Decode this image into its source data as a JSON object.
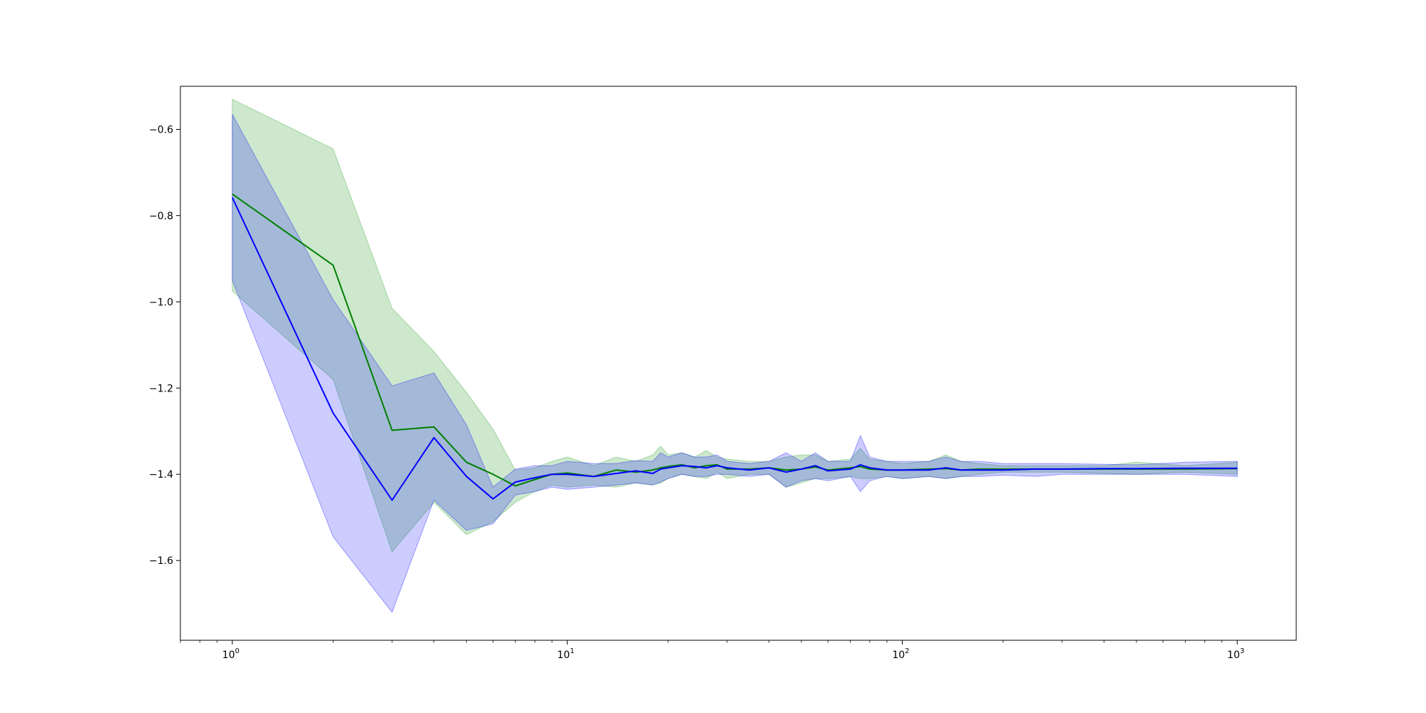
{
  "chart_data": {
    "type": "line",
    "title": "",
    "xlabel": "",
    "ylabel": "",
    "xscale": "log",
    "xlim": [
      0.7,
      1500
    ],
    "ylim": [
      -1.785,
      -0.5
    ],
    "grid": false,
    "legend": "none",
    "x_ticks": [
      {
        "value": 1,
        "base": "10",
        "exp": "0"
      },
      {
        "value": 10,
        "base": "10",
        "exp": "1"
      },
      {
        "value": 100,
        "base": "10",
        "exp": "2"
      },
      {
        "value": 1000,
        "base": "10",
        "exp": "3"
      }
    ],
    "y_ticks": [
      {
        "value": -0.6,
        "label": "−0.6"
      },
      {
        "value": -0.8,
        "label": "−0.8"
      },
      {
        "value": -1.0,
        "label": "−1.0"
      },
      {
        "value": -1.2,
        "label": "−1.2"
      },
      {
        "value": -1.4,
        "label": "−1.4"
      },
      {
        "value": -1.6,
        "label": "−1.6"
      }
    ],
    "series": [
      {
        "color": "#008000",
        "fill_color": "#2ca02c",
        "fill_opacity": 0.24,
        "x": [
          1,
          2,
          3,
          4,
          5,
          6,
          7,
          8,
          9,
          10,
          12,
          14,
          16,
          18,
          19,
          20,
          22,
          24,
          26,
          28,
          30,
          35,
          40,
          45,
          50,
          55,
          60,
          70,
          75,
          80,
          90,
          100,
          120,
          135,
          150,
          170,
          200,
          250,
          300,
          400,
          500,
          700,
          1000
        ],
        "y": [
          -0.75,
          -0.915,
          -1.298,
          -1.29,
          -1.372,
          -1.4,
          -1.427,
          -1.412,
          -1.4,
          -1.397,
          -1.405,
          -1.39,
          -1.395,
          -1.39,
          -1.385,
          -1.382,
          -1.378,
          -1.385,
          -1.38,
          -1.378,
          -1.388,
          -1.388,
          -1.385,
          -1.39,
          -1.388,
          -1.383,
          -1.39,
          -1.385,
          -1.382,
          -1.388,
          -1.39,
          -1.39,
          -1.388,
          -1.387,
          -1.39,
          -1.388,
          -1.388,
          -1.388,
          -1.388,
          -1.388,
          -1.388,
          -1.388,
          -1.387
        ],
        "upper": [
          -0.53,
          -0.645,
          -1.015,
          -1.115,
          -1.21,
          -1.295,
          -1.39,
          -1.385,
          -1.37,
          -1.36,
          -1.38,
          -1.36,
          -1.37,
          -1.355,
          -1.335,
          -1.355,
          -1.35,
          -1.36,
          -1.345,
          -1.36,
          -1.365,
          -1.37,
          -1.37,
          -1.36,
          -1.355,
          -1.355,
          -1.37,
          -1.365,
          -1.34,
          -1.365,
          -1.37,
          -1.375,
          -1.37,
          -1.355,
          -1.37,
          -1.375,
          -1.38,
          -1.38,
          -1.38,
          -1.38,
          -1.372,
          -1.38,
          -1.372
        ],
        "lower": [
          -0.975,
          -1.18,
          -1.58,
          -1.465,
          -1.54,
          -1.51,
          -1.465,
          -1.44,
          -1.425,
          -1.43,
          -1.425,
          -1.43,
          -1.42,
          -1.425,
          -1.42,
          -1.41,
          -1.4,
          -1.405,
          -1.41,
          -1.395,
          -1.41,
          -1.4,
          -1.4,
          -1.43,
          -1.42,
          -1.41,
          -1.41,
          -1.405,
          -1.41,
          -1.41,
          -1.405,
          -1.41,
          -1.405,
          -1.41,
          -1.405,
          -1.4,
          -1.395,
          -1.395,
          -1.395,
          -1.398,
          -1.4,
          -1.395,
          -1.4
        ]
      },
      {
        "color": "#0000ff",
        "fill_color": "#0000ff",
        "fill_opacity": 0.2,
        "x": [
          1,
          2,
          3,
          4,
          5,
          6,
          7,
          8,
          9,
          10,
          12,
          14,
          16,
          18,
          19,
          20,
          22,
          24,
          26,
          28,
          30,
          35,
          40,
          45,
          50,
          55,
          60,
          70,
          75,
          80,
          90,
          100,
          120,
          135,
          150,
          170,
          200,
          250,
          300,
          400,
          500,
          700,
          1000
        ],
        "y": [
          -0.758,
          -1.258,
          -1.46,
          -1.315,
          -1.405,
          -1.457,
          -1.418,
          -1.408,
          -1.4,
          -1.4,
          -1.405,
          -1.398,
          -1.392,
          -1.398,
          -1.388,
          -1.385,
          -1.38,
          -1.382,
          -1.385,
          -1.38,
          -1.385,
          -1.39,
          -1.385,
          -1.395,
          -1.388,
          -1.38,
          -1.392,
          -1.388,
          -1.378,
          -1.385,
          -1.39,
          -1.39,
          -1.39,
          -1.385,
          -1.39,
          -1.39,
          -1.39,
          -1.388,
          -1.388,
          -1.387,
          -1.387,
          -1.386,
          -1.386
        ],
        "upper": [
          -0.565,
          -0.995,
          -1.195,
          -1.165,
          -1.285,
          -1.43,
          -1.388,
          -1.38,
          -1.38,
          -1.37,
          -1.375,
          -1.375,
          -1.368,
          -1.37,
          -1.35,
          -1.36,
          -1.35,
          -1.36,
          -1.36,
          -1.355,
          -1.37,
          -1.375,
          -1.37,
          -1.35,
          -1.37,
          -1.35,
          -1.37,
          -1.37,
          -1.31,
          -1.36,
          -1.37,
          -1.37,
          -1.37,
          -1.36,
          -1.37,
          -1.37,
          -1.375,
          -1.375,
          -1.375,
          -1.377,
          -1.378,
          -1.372,
          -1.37
        ],
        "lower": [
          -0.95,
          -1.545,
          -1.72,
          -1.46,
          -1.53,
          -1.515,
          -1.448,
          -1.44,
          -1.43,
          -1.435,
          -1.43,
          -1.425,
          -1.42,
          -1.425,
          -1.418,
          -1.41,
          -1.4,
          -1.405,
          -1.405,
          -1.4,
          -1.4,
          -1.405,
          -1.4,
          -1.43,
          -1.415,
          -1.41,
          -1.415,
          -1.405,
          -1.44,
          -1.415,
          -1.405,
          -1.41,
          -1.405,
          -1.41,
          -1.405,
          -1.405,
          -1.402,
          -1.405,
          -1.4,
          -1.4,
          -1.4,
          -1.4,
          -1.405
        ]
      }
    ]
  }
}
